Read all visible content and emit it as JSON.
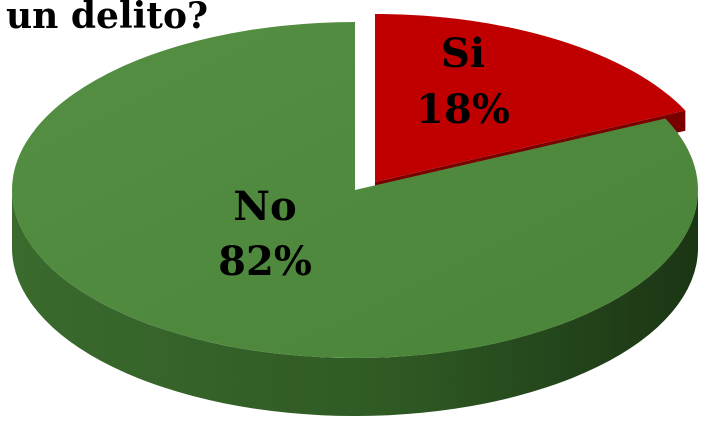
{
  "chart_data": {
    "type": "pie",
    "title": "un delito?",
    "three_d": true,
    "legend": "none",
    "slices": [
      {
        "label": "Si",
        "value": 18,
        "value_label": "18%",
        "color": "#c00000",
        "side_color": "#7a0000",
        "exploded": true
      },
      {
        "label": "No",
        "value": 82,
        "value_label": "82%",
        "color": "#4e8b3f",
        "side_color": "#2c5622",
        "exploded": false
      }
    ]
  }
}
